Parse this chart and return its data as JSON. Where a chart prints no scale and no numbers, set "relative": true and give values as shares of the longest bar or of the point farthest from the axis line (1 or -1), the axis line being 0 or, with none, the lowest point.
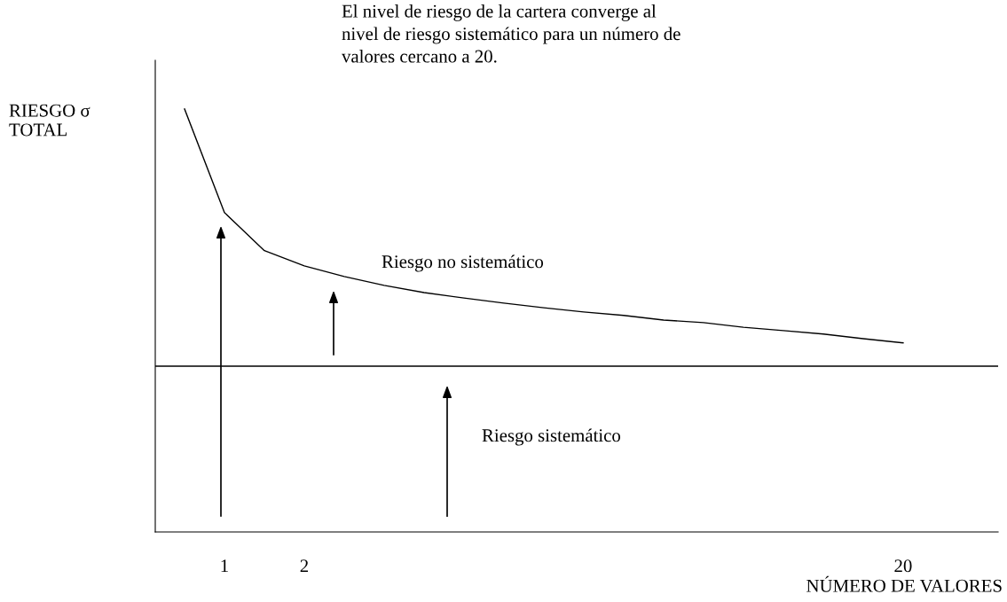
{
  "chart_data": {
    "type": "line",
    "relative": true,
    "title": "El nivel de riesgo de la cartera converge al\nnivel de riesgo sistemático para un número de\nvalores cercano a 20.",
    "xlabel": "NÚMERO DE VALORES",
    "ylabel": "RIESGO σ\nTOTAL",
    "categories": [
      null,
      "1",
      null,
      "2",
      null,
      null,
      null,
      null,
      null,
      null,
      null,
      null,
      null,
      null,
      null,
      null,
      null,
      null,
      "20"
    ],
    "series": [
      {
        "color": "#000000",
        "values": [
          1.0,
          0.755,
          0.665,
          0.629,
          0.604,
          0.583,
          0.566,
          0.553,
          0.541,
          0.53,
          0.52,
          0.512,
          0.501,
          0.495,
          0.484,
          0.476,
          0.468,
          0.457,
          0.447
        ]
      }
    ],
    "ref_lines": [
      {
        "axis": "y",
        "value": 0.392,
        "color": "#000000"
      }
    ],
    "annotations": [
      "Riesgo no sistemático",
      "Riesgo sistemático"
    ],
    "marker": "none",
    "line_style": "solid",
    "grid": false,
    "legend": false
  }
}
